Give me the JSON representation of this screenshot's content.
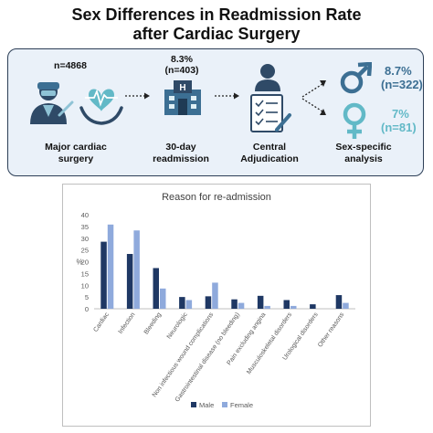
{
  "title_line1": "Sex Differences in Readmission Rate",
  "title_line2": "after Cardiac Surgery",
  "flow": {
    "step1": {
      "stat": "n=4868",
      "label_line1": "Major cardiac",
      "label_line2": "surgery",
      "icon": "doctor-heart-icon"
    },
    "step2": {
      "stat_line1": "8.3%",
      "stat_line2": "(n=403)",
      "label_line1": "30-day",
      "label_line2": "readmission",
      "icon": "hospital-icon"
    },
    "step3": {
      "label_line1": "Central",
      "label_line2": "Adjudication",
      "icon": "person-checklist-icon"
    },
    "step4": {
      "label_line1": "Sex-specific",
      "label_line2": "analysis"
    },
    "male": {
      "pct": "8.7%",
      "n": "(n=322)",
      "icon": "male-symbol-icon"
    },
    "female": {
      "pct": "7%",
      "n": "(n=81)",
      "icon": "female-symbol-icon"
    }
  },
  "colors": {
    "male": "#1f3864",
    "female": "#8faadc",
    "male_symbol": "#3c6f93",
    "female_symbol": "#62b9c7",
    "panel": "#eaf1f9"
  },
  "chart_data": {
    "type": "bar",
    "title": "Reason for re-admission",
    "ylabel": "%",
    "ylim": [
      0,
      40
    ],
    "yticks": [
      0,
      5,
      10,
      15,
      20,
      25,
      30,
      35,
      40
    ],
    "grid": false,
    "legend_position": "bottom",
    "categories": [
      "Cardiac",
      "Infection",
      "Bleeding",
      "Neurologic",
      "Non infectious wound complications",
      "Gastrointestinal disease (no bleeding)",
      "Pain excluding angina",
      "Musculoskeletal disorders",
      "Urological disorders",
      "Other reasons"
    ],
    "series": [
      {
        "name": "Male",
        "values": [
          28.5,
          23.3,
          17.3,
          5.0,
          5.3,
          4.0,
          5.5,
          3.7,
          1.9,
          5.8
        ]
      },
      {
        "name": "Female",
        "values": [
          35.8,
          33.3,
          8.6,
          3.7,
          11.1,
          2.5,
          1.2,
          1.2,
          0,
          2.5
        ]
      }
    ]
  }
}
